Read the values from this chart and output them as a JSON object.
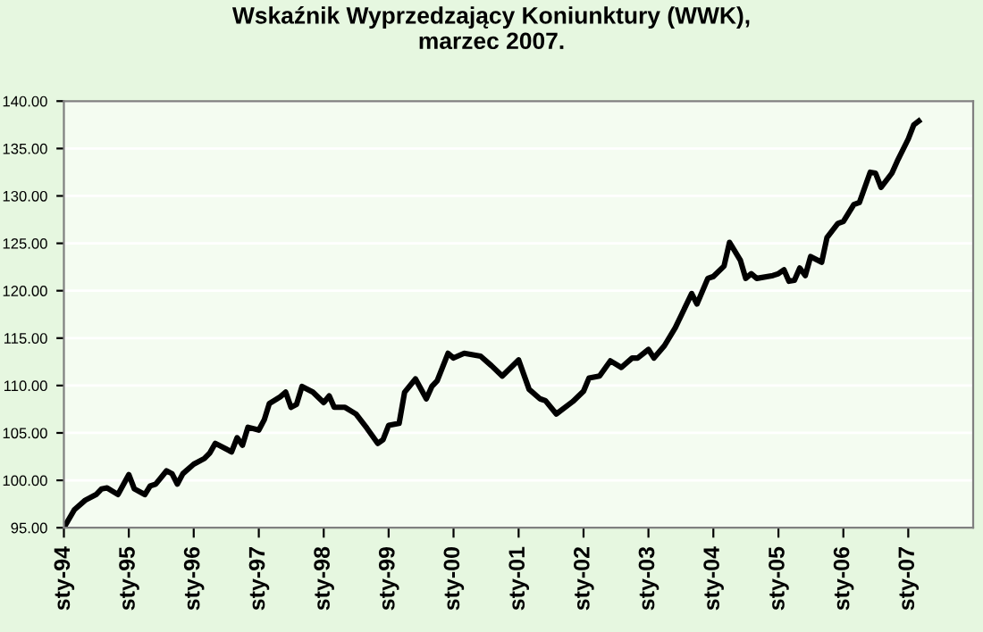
{
  "chart_data": {
    "type": "line",
    "title": "Wskaźnik Wyprzedzający Koniunktury (WWK),\nmarzec 2007.",
    "x": [
      "1994-01",
      "1994-03",
      "1994-05",
      "1994-07",
      "1994-08",
      "1994-09",
      "1994-11",
      "1995-01",
      "1995-02",
      "1995-04",
      "1995-05",
      "1995-06",
      "1995-08",
      "1995-09",
      "1995-10",
      "1995-11",
      "1996-01",
      "1996-03",
      "1996-04",
      "1996-05",
      "1996-08",
      "1996-09",
      "1996-10",
      "1996-11",
      "1997-01",
      "1997-02",
      "1997-03",
      "1997-05",
      "1997-06",
      "1997-07",
      "1997-08",
      "1997-09",
      "1997-11",
      "1998-01",
      "1998-02",
      "1998-03",
      "1998-05",
      "1998-07",
      "1998-09",
      "1998-11",
      "1998-12",
      "1999-01",
      "1999-03",
      "1999-04",
      "1999-06",
      "1999-08",
      "1999-09",
      "1999-10",
      "1999-12",
      "2000-01",
      "2000-03",
      "2000-06",
      "2000-08",
      "2000-10",
      "2001-01",
      "2001-03",
      "2001-05",
      "2001-06",
      "2001-08",
      "2001-11",
      "2002-01",
      "2002-02",
      "2002-04",
      "2002-06",
      "2002-08",
      "2002-10",
      "2002-11",
      "2003-01",
      "2003-02",
      "2003-04",
      "2003-06",
      "2003-09",
      "2003-10",
      "2003-12",
      "2004-01",
      "2004-03",
      "2004-04",
      "2004-06",
      "2004-07",
      "2004-08",
      "2004-09",
      "2004-12",
      "2005-01",
      "2005-02",
      "2005-03",
      "2005-04",
      "2005-05",
      "2005-06",
      "2005-07",
      "2005-09",
      "2005-10",
      "2005-12",
      "2006-01",
      "2006-03",
      "2006-04",
      "2006-06",
      "2006-07",
      "2006-08",
      "2006-10",
      "2006-11",
      "2007-01",
      "2007-02",
      "2007-03"
    ],
    "series": [
      {
        "color": "#000000",
        "values": [
          95.0,
          96.9,
          97.9,
          98.5,
          99.1,
          99.2,
          98.5,
          100.6,
          99.1,
          98.5,
          99.4,
          99.6,
          101.0,
          100.7,
          99.6,
          100.7,
          101.7,
          102.3,
          102.9,
          103.9,
          103.0,
          104.5,
          103.7,
          105.6,
          105.3,
          106.4,
          108.1,
          108.8,
          109.3,
          107.7,
          108.0,
          109.9,
          109.3,
          108.2,
          108.9,
          107.7,
          107.7,
          107.0,
          105.5,
          103.9,
          104.3,
          105.8,
          106.0,
          109.3,
          110.7,
          108.6,
          109.9,
          110.5,
          113.4,
          112.9,
          113.4,
          113.1,
          112.1,
          111.0,
          112.7,
          109.6,
          108.6,
          108.4,
          107.0,
          108.3,
          109.4,
          110.8,
          111.0,
          112.6,
          111.9,
          112.9,
          112.9,
          113.8,
          112.9,
          114.2,
          116.1,
          119.7,
          118.6,
          121.3,
          121.5,
          122.6,
          125.1,
          123.2,
          121.3,
          121.8,
          121.3,
          121.6,
          121.8,
          122.2,
          121.0,
          121.1,
          122.4,
          121.6,
          123.6,
          123.0,
          125.6,
          127.1,
          127.3,
          129.1,
          129.3,
          132.5,
          132.4,
          130.9,
          132.4,
          133.7,
          136.0,
          137.5,
          137.9
        ]
      }
    ],
    "xlim": [
      "1994-01",
      "2008-01"
    ],
    "xticks": [
      {
        "value": "1994-01",
        "label": "sty-94"
      },
      {
        "value": "1995-01",
        "label": "sty-95"
      },
      {
        "value": "1996-01",
        "label": "sty-96"
      },
      {
        "value": "1997-01",
        "label": "sty-97"
      },
      {
        "value": "1998-01",
        "label": "sty-98"
      },
      {
        "value": "1999-01",
        "label": "sty-99"
      },
      {
        "value": "2000-01",
        "label": "sty-00"
      },
      {
        "value": "2001-01",
        "label": "sty-01"
      },
      {
        "value": "2002-01",
        "label": "sty-02"
      },
      {
        "value": "2003-01",
        "label": "sty-03"
      },
      {
        "value": "2004-01",
        "label": "sty-04"
      },
      {
        "value": "2005-01",
        "label": "sty-05"
      },
      {
        "value": "2006-01",
        "label": "sty-06"
      },
      {
        "value": "2007-01",
        "label": "sty-07"
      }
    ],
    "ylim": [
      95,
      140
    ],
    "yticks": [
      {
        "value": 95,
        "label": "95.00"
      },
      {
        "value": 100,
        "label": "100.00"
      },
      {
        "value": 105,
        "label": "105.00"
      },
      {
        "value": 110,
        "label": "110.00"
      },
      {
        "value": 115,
        "label": "115.00"
      },
      {
        "value": 120,
        "label": "120.00"
      },
      {
        "value": 125,
        "label": "125.00"
      },
      {
        "value": 130,
        "label": "130.00"
      },
      {
        "value": 135,
        "label": "135.00"
      },
      {
        "value": 140,
        "label": "140.00"
      }
    ],
    "grid": "y",
    "legend": false,
    "marker": "none",
    "line_style": "solid"
  }
}
